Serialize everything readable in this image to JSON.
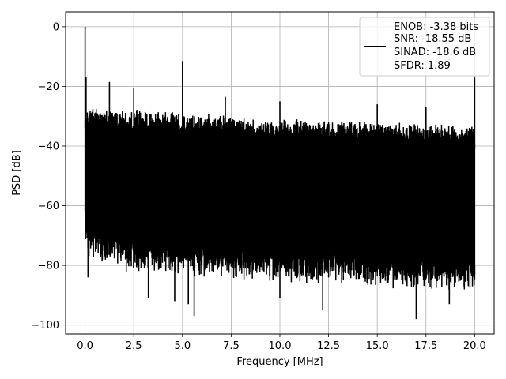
{
  "chart_data": {
    "type": "line",
    "xlabel": "Frequency [MHz]",
    "ylabel": "PSD [dB]",
    "xlim": [
      -1.0,
      21.0
    ],
    "ylim": [
      -103,
      5
    ],
    "x_ticks": [
      0.0,
      2.5,
      5.0,
      7.5,
      10.0,
      12.5,
      15.0,
      17.5,
      20.0
    ],
    "x_tick_labels": [
      "0.0",
      "2.5",
      "5.0",
      "7.5",
      "10.0",
      "12.5",
      "15.0",
      "17.5",
      "20.0"
    ],
    "y_ticks": [
      0,
      -20,
      -40,
      -60,
      -80,
      -100
    ],
    "y_tick_labels": [
      "0",
      "−20",
      "−40",
      "−60",
      "−80",
      "−100"
    ],
    "grid": true,
    "legend_position": "top-right",
    "legend": [
      "ENOB: -3.38 bits",
      "SNR: -18.55 dB",
      "SINAD: -18.6 dB",
      "SFDR: 1.89"
    ],
    "series": [
      {
        "color": "#000000",
        "noise_floor": {
          "x": [
            0.0,
            0.1,
            1.0,
            2.5,
            5.0,
            7.5,
            10.0,
            12.5,
            15.0,
            17.5,
            20.0
          ],
          "upper": [
            -26,
            -26,
            -27,
            -27.5,
            -28.5,
            -29.5,
            -30.5,
            -31,
            -31.5,
            -32,
            -33
          ],
          "lower": [
            -65,
            -68,
            -72,
            -74,
            -75,
            -76,
            -77,
            -78,
            -79,
            -80,
            -80
          ]
        },
        "peaks": [
          {
            "x": 0.0,
            "y": 0
          },
          {
            "x": 0.05,
            "y": -17
          },
          {
            "x": 1.25,
            "y": -18.5
          },
          {
            "x": 2.5,
            "y": -20.5
          },
          {
            "x": 5.0,
            "y": -11.5
          },
          {
            "x": 7.2,
            "y": -23.5
          },
          {
            "x": 10.0,
            "y": -25
          },
          {
            "x": 15.0,
            "y": -26
          },
          {
            "x": 17.5,
            "y": -27
          },
          {
            "x": 20.0,
            "y": -17
          }
        ],
        "dips": [
          {
            "x": 0.15,
            "y": -84
          },
          {
            "x": 3.25,
            "y": -91
          },
          {
            "x": 4.6,
            "y": -92
          },
          {
            "x": 5.3,
            "y": -93
          },
          {
            "x": 5.6,
            "y": -97
          },
          {
            "x": 10.0,
            "y": -91
          },
          {
            "x": 12.2,
            "y": -95
          },
          {
            "x": 17.0,
            "y": -98
          },
          {
            "x": 18.7,
            "y": -93
          },
          {
            "x": 20.0,
            "y": -83
          }
        ]
      }
    ]
  }
}
